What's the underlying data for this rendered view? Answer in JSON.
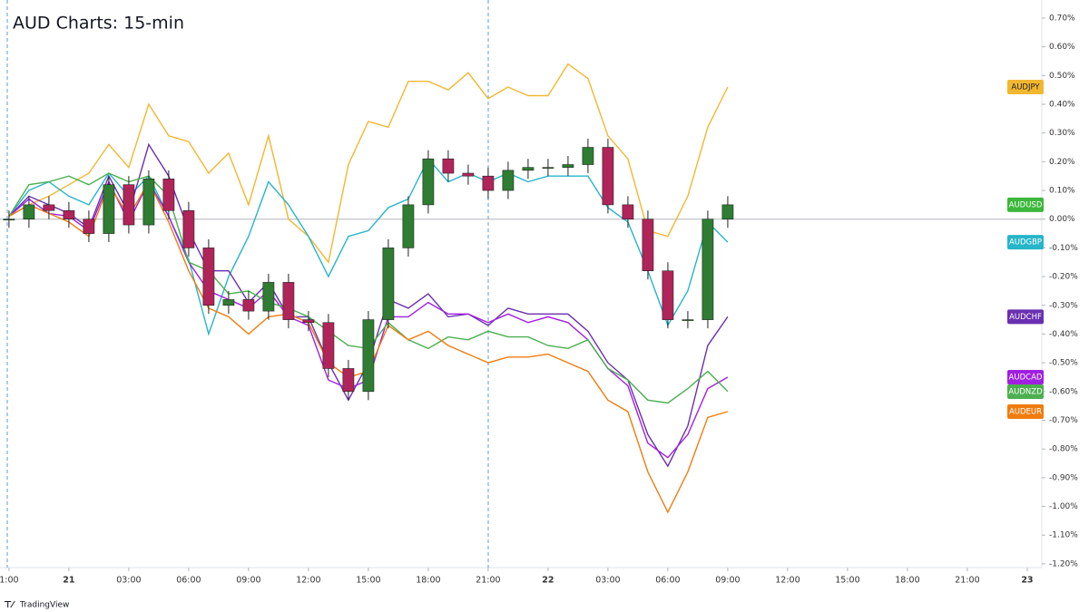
{
  "chart_data": {
    "type": "line",
    "title": "AUD Charts: 15-min",
    "brand": "TradingView",
    "x": [
      -3,
      -2,
      -1,
      0,
      1,
      2,
      3,
      4,
      5,
      6,
      7,
      8,
      9,
      10,
      11,
      12,
      13,
      14,
      15,
      16,
      17,
      18,
      19,
      20,
      21,
      22,
      23,
      24,
      25,
      26,
      27,
      28,
      29,
      30,
      31,
      32,
      33
    ],
    "xlim": [
      -3.45,
      48.73
    ],
    "xticks": [
      {
        "value": -3,
        "label": "1:00"
      },
      {
        "value": 0,
        "label": "21"
      },
      {
        "value": 3,
        "label": "03:00"
      },
      {
        "value": 6,
        "label": "06:00"
      },
      {
        "value": 9,
        "label": "09:00"
      },
      {
        "value": 12,
        "label": "12:00"
      },
      {
        "value": 15,
        "label": "15:00"
      },
      {
        "value": 18,
        "label": "18:00"
      },
      {
        "value": 21,
        "label": "21:00"
      },
      {
        "value": 24,
        "label": "22"
      },
      {
        "value": 27,
        "label": "03:00"
      },
      {
        "value": 30,
        "label": "06:00"
      },
      {
        "value": 33,
        "label": "09:00"
      },
      {
        "value": 36,
        "label": "12:00"
      },
      {
        "value": 39,
        "label": "15:00"
      },
      {
        "value": 42,
        "label": "18:00"
      },
      {
        "value": 45,
        "label": "21:00"
      },
      {
        "value": 48,
        "label": "23"
      }
    ],
    "ylim": [
      -1.213,
      0.763
    ],
    "yticks": [
      {
        "value": 0.7,
        "label": "0.70%"
      },
      {
        "value": 0.6,
        "label": "0.60%"
      },
      {
        "value": 0.5,
        "label": "0.50%"
      },
      {
        "value": 0.4,
        "label": "0.40%"
      },
      {
        "value": 0.3,
        "label": "0.30%"
      },
      {
        "value": 0.2,
        "label": "0.20%"
      },
      {
        "value": 0.1,
        "label": "0.10%"
      },
      {
        "value": 0,
        "label": "0.00%"
      },
      {
        "value": -0.1,
        "label": "-0.10%"
      },
      {
        "value": -0.2,
        "label": "-0.20%"
      },
      {
        "value": -0.3,
        "label": "-0.30%"
      },
      {
        "value": -0.4,
        "label": "-0.40%"
      },
      {
        "value": -0.5,
        "label": "-0.50%"
      },
      {
        "value": -0.6,
        "label": "-0.60%"
      },
      {
        "value": -0.7,
        "label": "-0.70%"
      },
      {
        "value": -0.8,
        "label": "-0.80%"
      },
      {
        "value": -0.9,
        "label": "-0.90%"
      },
      {
        "value": -1.0,
        "label": "-1.00%"
      },
      {
        "value": -1.1,
        "label": "-1.10%"
      },
      {
        "value": -1.2,
        "label": "-1.20%"
      }
    ],
    "series": [
      {
        "name": "AUDJPY",
        "color": "#f2b731",
        "values": [
          0.01,
          0.05,
          0.08,
          0.12,
          0.16,
          0.26,
          0.18,
          0.4,
          0.29,
          0.27,
          0.16,
          0.23,
          0.05,
          0.29,
          0.0,
          -0.06,
          -0.15,
          0.19,
          0.34,
          0.32,
          0.48,
          0.48,
          0.45,
          0.51,
          0.42,
          0.46,
          0.43,
          0.43,
          0.54,
          0.49,
          0.29,
          0.21,
          -0.04,
          -0.06,
          0.08,
          0.32,
          0.46
        ]
      },
      {
        "name": "AUDGBP",
        "color": "#26b5c9",
        "values": [
          0.01,
          0.1,
          0.13,
          0.08,
          0.05,
          0.16,
          0.08,
          0.15,
          0.01,
          -0.14,
          -0.4,
          -0.2,
          -0.06,
          0.13,
          0.05,
          -0.06,
          -0.2,
          -0.06,
          -0.04,
          0.04,
          0.07,
          0.21,
          0.13,
          0.16,
          0.13,
          0.16,
          0.13,
          0.15,
          0.15,
          0.15,
          0.04,
          -0.01,
          -0.18,
          -0.37,
          -0.25,
          -0.01,
          -0.08
        ]
      },
      {
        "name": "AUDCHF",
        "color": "#6a2fb0",
        "values": [
          0.01,
          0.08,
          0.05,
          0.02,
          -0.03,
          0.15,
          0.02,
          0.26,
          0.15,
          -0.04,
          -0.18,
          -0.18,
          -0.29,
          -0.22,
          -0.34,
          -0.34,
          -0.5,
          -0.63,
          -0.5,
          -0.28,
          -0.31,
          -0.26,
          -0.34,
          -0.33,
          -0.37,
          -0.31,
          -0.33,
          -0.33,
          -0.33,
          -0.39,
          -0.5,
          -0.56,
          -0.75,
          -0.86,
          -0.72,
          -0.44,
          -0.34
        ]
      },
      {
        "name": "AUDCAD",
        "color": "#a020e0",
        "values": [
          0.01,
          0.07,
          0.02,
          0.01,
          -0.04,
          0.13,
          -0.01,
          0.13,
          0.01,
          -0.15,
          -0.25,
          -0.28,
          -0.31,
          -0.25,
          -0.34,
          -0.37,
          -0.56,
          -0.59,
          -0.56,
          -0.34,
          -0.34,
          -0.29,
          -0.33,
          -0.33,
          -0.36,
          -0.33,
          -0.36,
          -0.34,
          -0.36,
          -0.42,
          -0.52,
          -0.58,
          -0.78,
          -0.83,
          -0.75,
          -0.59,
          -0.55
        ]
      },
      {
        "name": "AUDNZD",
        "color": "#4caf50",
        "values": [
          0.01,
          0.12,
          0.13,
          0.15,
          0.12,
          0.16,
          0.13,
          0.15,
          0.08,
          -0.15,
          -0.18,
          -0.26,
          -0.25,
          -0.29,
          -0.31,
          -0.34,
          -0.39,
          -0.44,
          -0.45,
          -0.36,
          -0.42,
          -0.45,
          -0.41,
          -0.42,
          -0.39,
          -0.41,
          -0.41,
          -0.44,
          -0.45,
          -0.42,
          -0.52,
          -0.56,
          -0.63,
          -0.64,
          -0.59,
          -0.53,
          -0.6
        ]
      },
      {
        "name": "AUDEUR",
        "color": "#f07c10",
        "values": [
          0.01,
          0.05,
          0.02,
          -0.01,
          -0.06,
          0.12,
          0.01,
          0.13,
          -0.01,
          -0.18,
          -0.31,
          -0.34,
          -0.4,
          -0.34,
          -0.33,
          -0.36,
          -0.5,
          -0.55,
          -0.53,
          -0.37,
          -0.42,
          -0.39,
          -0.44,
          -0.47,
          -0.5,
          -0.48,
          -0.48,
          -0.47,
          -0.5,
          -0.53,
          -0.63,
          -0.67,
          -0.88,
          -1.02,
          -0.88,
          -0.69,
          -0.67
        ]
      }
    ],
    "candles": {
      "name": "AUDUSD",
      "color": "#3cb83c",
      "up_color": "#2e7d32",
      "down_color": "#b0245a",
      "open": [
        0,
        0,
        0.05,
        0.03,
        0,
        -0.05,
        0.12,
        -0.02,
        0.14,
        0.03,
        -0.1,
        -0.3,
        -0.28,
        -0.32,
        -0.22,
        -0.35,
        -0.36,
        -0.52,
        -0.6,
        -0.35,
        -0.1,
        0.05,
        0.21,
        0.16,
        0.15,
        0.1,
        0.17,
        0.18,
        0.18,
        0.19,
        0.25,
        0.05,
        0,
        -0.18,
        -0.35,
        -0.35,
        0
      ],
      "high": [
        0.03,
        0.08,
        0.08,
        0.06,
        0.03,
        0.15,
        0.15,
        0.17,
        0.17,
        0.06,
        -0.07,
        -0.25,
        -0.25,
        -0.19,
        -0.19,
        -0.32,
        -0.33,
        -0.49,
        -0.32,
        -0.07,
        0.08,
        0.24,
        0.24,
        0.19,
        0.18,
        0.2,
        0.21,
        0.21,
        0.22,
        0.28,
        0.28,
        0.08,
        0.03,
        -0.15,
        -0.32,
        0.03,
        0.08
      ],
      "low": [
        -0.03,
        -0.03,
        0,
        -0.03,
        -0.08,
        -0.08,
        -0.05,
        -0.05,
        0,
        -0.13,
        -0.33,
        -0.33,
        -0.35,
        -0.35,
        -0.38,
        -0.39,
        -0.55,
        -0.63,
        -0.63,
        -0.38,
        -0.13,
        0.02,
        0.13,
        0.12,
        0.07,
        0.07,
        0.14,
        0.15,
        0.15,
        0.16,
        0.02,
        -0.03,
        -0.21,
        -0.38,
        -0.38,
        -0.38,
        -0.03
      ],
      "close": [
        0,
        0.05,
        0.03,
        0,
        -0.05,
        0.12,
        -0.02,
        0.14,
        0.03,
        -0.1,
        -0.3,
        -0.28,
        -0.32,
        -0.22,
        -0.35,
        -0.36,
        -0.52,
        -0.6,
        -0.35,
        -0.1,
        0.05,
        0.21,
        0.16,
        0.15,
        0.1,
        0.17,
        0.18,
        0.18,
        0.19,
        0.25,
        0.05,
        0,
        -0.18,
        -0.35,
        -0.35,
        0,
        0.05
      ]
    }
  }
}
